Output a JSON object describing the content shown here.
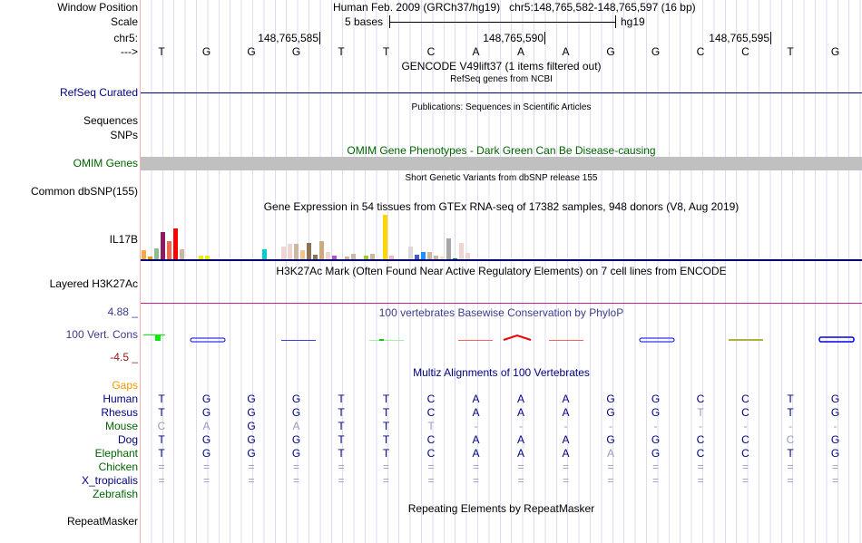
{
  "labels": {
    "window_position": "Window Position",
    "scale": "Scale",
    "chrom": "chr5:",
    "strand": "--->",
    "refseq": "RefSeq Curated",
    "sequences": "Sequences",
    "snps": "SNPs",
    "omim": "OMIM Genes",
    "dbsnp": "Common dbSNP(155)",
    "il17b": "IL17B",
    "h3k27ac": "Layered H3K27Ac",
    "cons": "100 Vert. Cons",
    "cons_max": "4.88 _",
    "cons_min": "-4.5 _",
    "gaps": "Gaps",
    "repeatmasker": "RepeatMasker"
  },
  "header": {
    "assembly": "Human Feb. 2009 (GRCh37/hg19)",
    "position": "chr5:148,765,582-148,765,597 (16 bp)",
    "scale_text": "5 bases",
    "scale_db": "hg19",
    "ticks": [
      "148,765,585",
      "148,765,590",
      "148,765,595"
    ]
  },
  "bases": [
    "T",
    "G",
    "G",
    "G",
    "T",
    "T",
    "C",
    "A",
    "A",
    "A",
    "G",
    "G",
    "C",
    "C",
    "T",
    "G"
  ],
  "tracks": {
    "gencode": "GENCODE V49lift37 (1 items filtered out)",
    "refseq_sub": "RefSeq genes from NCBI",
    "publications": "Publications: Sequences in Scientific Articles",
    "omim_title": "OMIM Gene Phenotypes - Dark Green Can Be Disease-causing",
    "dbsnp_title": "Short Genetic Variants from dbSNP release 155",
    "gtex_title": "Gene Expression in 54 tissues from GTEx RNA-seq of 17382 samples, 948 donors (V8, Aug 2019)",
    "h3k27ac_title": "H3K27Ac Mark (Often Found Near Active Regulatory Elements) on 7 cell lines from ENCODE",
    "cons_title": "100 vertebrates Basewise Conservation by PhyloP",
    "multiz_title": "Multiz Alignments of 100 Vertebrates",
    "repeat_title": "Repeating Elements by RepeatMasker"
  },
  "gtex": {
    "values": [
      11,
      4,
      13,
      31,
      21,
      35,
      12,
      0,
      0,
      5,
      5,
      1,
      1,
      1,
      1,
      1,
      0,
      1,
      1,
      12,
      1,
      1,
      15,
      18,
      18,
      11,
      19,
      6,
      21,
      9,
      5,
      1,
      4,
      7,
      0,
      5,
      7,
      1,
      50,
      5,
      0,
      1,
      15,
      6,
      9,
      9,
      5,
      4,
      24,
      2,
      19,
      8,
      0,
      0
    ],
    "colors": [
      "#ffa54f",
      "#ee9a00",
      "#8fbc8f",
      "#8b1c62",
      "#ee6a50",
      "#ff0000",
      "#cdb79e",
      "#fff",
      "#fff",
      "#eeee00",
      "#eeee00",
      "#eeee00",
      "#eeee00",
      "#eeee00",
      "#eeee00",
      "#eeee00",
      "#fff",
      "#eeee00",
      "#eeee00",
      "#00cdcd",
      "#ee82ee",
      "#9ac0cd",
      "#eed5d2",
      "#eed5d2",
      "#cdb79e",
      "#eec591",
      "#8b7355",
      "#8b7355",
      "#cdaa7d",
      "#eed5d2",
      "#b452cd",
      "#4b0082",
      "#cdb79e",
      "#cdb79e",
      "#fff",
      "#9acd32",
      "#cdb79e",
      "#7a67ee",
      "#ffd700",
      "#ffb6c1",
      "#fff",
      "#c1ffc1",
      "#d9d9d9",
      "#3a5fcd",
      "#1e90ff",
      "#cdb79e",
      "#cdb79e",
      "#ffdab9",
      "#a6a6a6",
      "#008b45",
      "#eed5d2",
      "#eed5d2",
      "#fff",
      "#fff"
    ]
  },
  "multiz": {
    "rows": [
      {
        "name": "Human",
        "color": "#000080",
        "seq": "TGGGTTCAAAGGCCTG"
      },
      {
        "name": "Rhesus",
        "color": "#000080",
        "seq": "TGGGTTCAAAGGTCTG"
      },
      {
        "name": "Mouse",
        "color": "#006400",
        "seq": "CAGATTT---------"
      },
      {
        "name": "Dog",
        "color": "#000080",
        "seq": "TGGGTTCAAAGGCCCG"
      },
      {
        "name": "Elephant",
        "color": "#006400",
        "seq": "TGGGTTCAAAAGCCTG"
      },
      {
        "name": "Chicken",
        "color": "#006400",
        "seq": "================"
      },
      {
        "name": "X_tropicalis",
        "color": "#000080",
        "seq": "================"
      },
      {
        "name": "Zebrafish",
        "color": "#006400",
        "seq": ""
      }
    ]
  },
  "colors": {
    "navy": "#000080",
    "omim_green": "#006400",
    "gaps_orange": "#ee9a00",
    "cons_blue": "#3c3c8c",
    "cons_red": "#8b1a1a",
    "h3_line": "#d0208a"
  }
}
